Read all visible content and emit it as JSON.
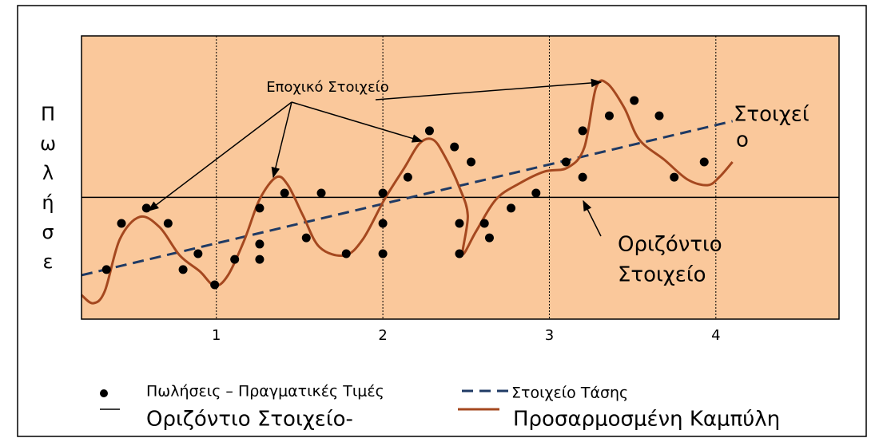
{
  "chart_data": {
    "type": "line",
    "ylabel": [
      "Π",
      "ω",
      "λ",
      "ή",
      "σ",
      "ε"
    ],
    "xlim": [
      0.19,
      4.74
    ],
    "ylim": [
      0,
      100
    ],
    "xticks": [
      1,
      2,
      3,
      4
    ],
    "grid": true,
    "legend": "bottom",
    "background": "#fac89b",
    "annotations": [
      {
        "text": "Εποχικό Στοιχείο"
      },
      {
        "lines": [
          "Στοιχεί",
          "ο"
        ]
      },
      {
        "lines": [
          "Οριζόντιο",
          "Στοιχείο"
        ]
      }
    ],
    "series": [
      {
        "name": "Οριζόντιο Στοιχείο-",
        "type": "line",
        "color": "#000000",
        "dash": false,
        "width": 1.5,
        "x": [
          0.19,
          4.74
        ],
        "values": [
          43,
          43
        ]
      },
      {
        "name": "Στοιχείο Τάσης",
        "type": "line",
        "color": "#1f3a64",
        "dash": true,
        "width": 3,
        "x": [
          0.19,
          4.1
        ],
        "values": [
          15.5,
          69.9
        ]
      },
      {
        "name": "Προσαρμοσμένη Καμπύλη",
        "type": "line",
        "color": "#a5481f",
        "dash": false,
        "width": 3,
        "smooth": true,
        "x": [
          0.19,
          0.26,
          0.33,
          0.42,
          0.54,
          0.66,
          0.78,
          0.9,
          0.99,
          1.07,
          1.17,
          1.26,
          1.36,
          1.43,
          1.52,
          1.62,
          1.77,
          1.88,
          2.01,
          2.13,
          2.22,
          2.3,
          2.37,
          2.46,
          2.51,
          2.48,
          2.56,
          2.68,
          2.82,
          2.97,
          3.11,
          3.21,
          3.28,
          3.35,
          3.45,
          3.54,
          3.69,
          3.83,
          3.95,
          4.02,
          4.1
        ],
        "values": [
          8.5,
          5.6,
          9.9,
          28.2,
          36.1,
          32.4,
          22.5,
          16.9,
          11.8,
          15.5,
          28.2,
          42.3,
          50.1,
          47.3,
          36.6,
          25.4,
          22.5,
          28.2,
          42.3,
          53.5,
          62.0,
          63.4,
          57.7,
          46.5,
          36.6,
          23.1,
          31.0,
          42.3,
          47.9,
          52.1,
          53.5,
          60.6,
          81.7,
          83.1,
          74.6,
          63.4,
          56.3,
          49.3,
          47.3,
          50.1,
          55.5
        ]
      },
      {
        "name": "Πωλήσεις – Πραγματικές Τιμές",
        "type": "scatter",
        "color": "#000000",
        "x": [
          0.34,
          0.43,
          0.58,
          0.71,
          0.8,
          0.89,
          0.99,
          1.11,
          1.26,
          1.26,
          1.26,
          1.41,
          1.54,
          1.63,
          1.78,
          2.0,
          2.0,
          2.0,
          2.15,
          2.28,
          2.43,
          2.53,
          2.46,
          2.46,
          2.61,
          2.64,
          2.77,
          2.92,
          3.1,
          3.2,
          3.2,
          3.36,
          3.51,
          3.66,
          3.75,
          3.93
        ],
        "values": [
          17.5,
          33.8,
          39.2,
          33.8,
          17.5,
          23.1,
          12.1,
          21.1,
          39.2,
          26.5,
          21.1,
          44.5,
          28.7,
          44.5,
          23.1,
          44.5,
          33.8,
          23.1,
          50.1,
          66.5,
          60.8,
          55.5,
          33.8,
          23.1,
          33.8,
          28.7,
          39.2,
          44.5,
          55.5,
          66.5,
          50.1,
          71.8,
          77.2,
          71.8,
          50.1,
          55.5
        ]
      }
    ]
  }
}
